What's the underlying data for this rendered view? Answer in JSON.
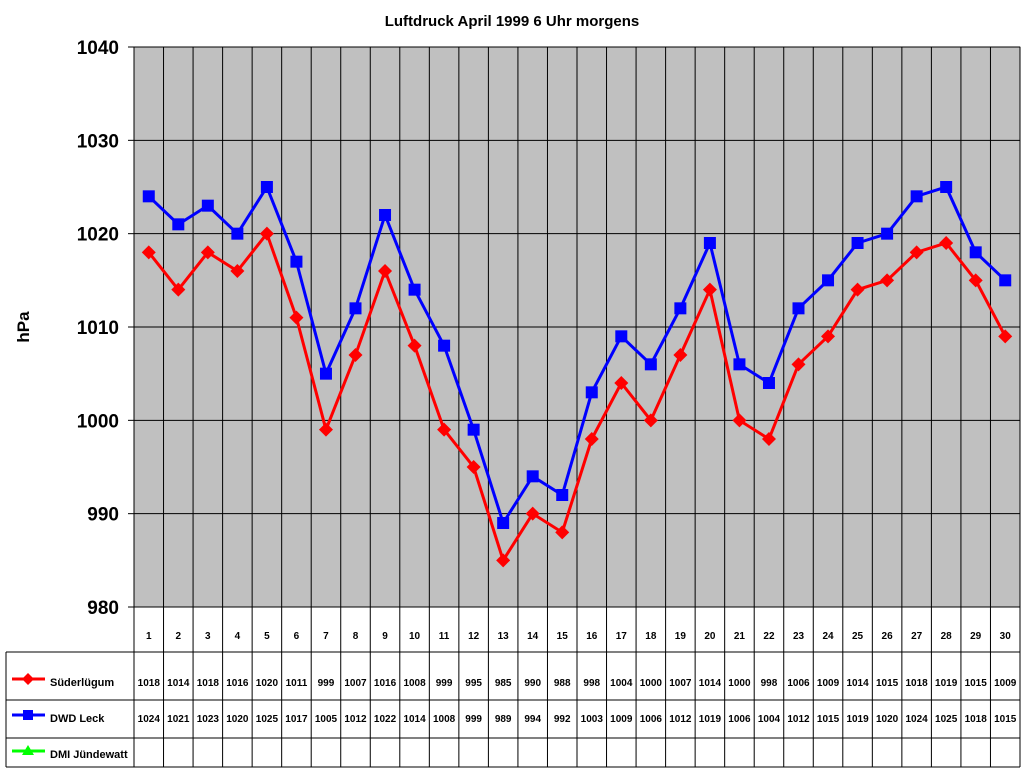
{
  "chart_data": {
    "type": "line",
    "title": "Luftdruck April 1999 6 Uhr morgens",
    "xlabel": "",
    "ylabel": "hPa",
    "ylim": [
      980,
      1040
    ],
    "yticks": [
      980,
      990,
      1000,
      1010,
      1020,
      1030,
      1040
    ],
    "grid": true,
    "plot_background": "#c0c0c0",
    "legend_position": "data-table",
    "categories": [
      "1",
      "2",
      "3",
      "4",
      "5",
      "6",
      "7",
      "8",
      "9",
      "10",
      "11",
      "12",
      "13",
      "14",
      "15",
      "16",
      "17",
      "18",
      "19",
      "20",
      "21",
      "22",
      "23",
      "24",
      "25",
      "26",
      "27",
      "28",
      "29",
      "30"
    ],
    "series": [
      {
        "name": "Süderlügum",
        "color": "#ff0000",
        "marker": "diamond",
        "values": [
          1018,
          1014,
          1018,
          1016,
          1020,
          1011,
          999,
          1007,
          1016,
          1008,
          999,
          995,
          985,
          990,
          988,
          998,
          1004,
          1000,
          1007,
          1014,
          1000,
          998,
          1006,
          1009,
          1014,
          1015,
          1018,
          1019,
          1015,
          1009
        ]
      },
      {
        "name": "DWD Leck",
        "color": "#0000ff",
        "marker": "square",
        "values": [
          1024,
          1021,
          1023,
          1020,
          1025,
          1017,
          1005,
          1012,
          1022,
          1014,
          1008,
          999,
          989,
          994,
          992,
          1003,
          1009,
          1006,
          1012,
          1019,
          1006,
          1004,
          1012,
          1015,
          1019,
          1020,
          1024,
          1025,
          1018,
          1015
        ]
      },
      {
        "name": "DMI Jündewatt",
        "color": "#00ff00",
        "marker": "triangle",
        "values": []
      }
    ]
  }
}
